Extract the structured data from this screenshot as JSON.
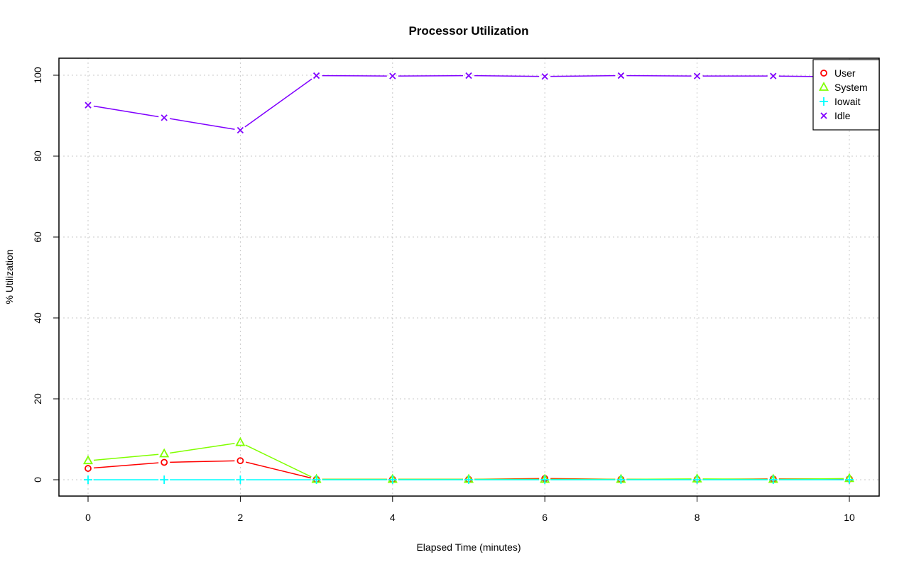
{
  "chart_data": {
    "type": "line",
    "title": "Processor Utilization",
    "xlabel": "Elapsed Time (minutes)",
    "ylabel": "% Utilization",
    "xlim": [
      0,
      10
    ],
    "ylim": [
      0,
      100
    ],
    "x_ticks": [
      0,
      2,
      4,
      6,
      8,
      10
    ],
    "y_ticks": [
      0,
      20,
      40,
      60,
      80,
      100
    ],
    "grid": true,
    "legend_position": "top-right",
    "x": [
      0,
      1,
      2,
      3,
      4,
      5,
      6,
      7,
      8,
      9,
      10
    ],
    "series": [
      {
        "name": "User",
        "color": "#ff0000",
        "marker": "circle",
        "values": [
          2.8,
          4.3,
          4.7,
          0.1,
          0.1,
          0.1,
          0.3,
          0.1,
          0.1,
          0.2,
          0.2
        ]
      },
      {
        "name": "System",
        "color": "#80ff00",
        "marker": "triangle",
        "values": [
          4.7,
          6.4,
          9.2,
          0.1,
          0.1,
          0.1,
          0.1,
          0.1,
          0.2,
          0.1,
          0.3
        ]
      },
      {
        "name": "Iowait",
        "color": "#00ffff",
        "marker": "plus",
        "values": [
          0,
          0,
          0,
          0,
          0,
          0,
          0,
          0,
          0,
          0,
          0
        ]
      },
      {
        "name": "Idle",
        "color": "#8000ff",
        "marker": "x",
        "values": [
          92.6,
          89.5,
          86.4,
          99.9,
          99.8,
          99.9,
          99.7,
          99.9,
          99.8,
          99.8,
          99.6
        ]
      }
    ]
  }
}
